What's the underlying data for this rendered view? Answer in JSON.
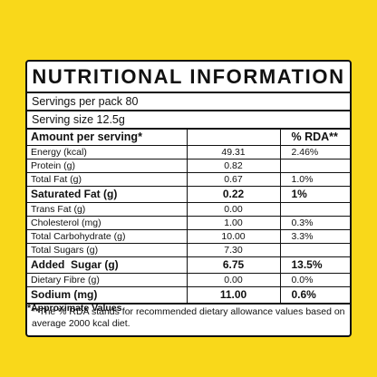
{
  "title": "NUTRITIONAL INFORMATION",
  "servings_per_pack": "Servings per pack 80",
  "serving_size": "Serving size 12.5g",
  "header": {
    "amount": "Amount per serving*",
    "rda": "% RDA**"
  },
  "rows": [
    {
      "name": "Energy (kcal)",
      "value": "49.31",
      "rda": "2.46%"
    },
    {
      "name": "Protein (g)",
      "value": "0.82",
      "rda": ""
    },
    {
      "name": "Total Fat (g)",
      "value": "0.67",
      "rda": "1.0%"
    },
    {
      "name": "Saturated Fat (g)",
      "value": "0.22",
      "rda": "1%"
    },
    {
      "name": "Trans Fat (g)",
      "value": "0.00",
      "rda": ""
    },
    {
      "name": "Cholesterol (mg)",
      "value": "1.00",
      "rda": "0.3%"
    },
    {
      "name": "Total Carbohydrate (g)",
      "value": "10.00",
      "rda": "3.3%"
    },
    {
      "name": "Total Sugars (g)",
      "value": "7.30",
      "rda": ""
    },
    {
      "name": "Added  Sugar (g)",
      "value": "6.75",
      "rda": "13.5%"
    },
    {
      "name": "Dietary Fibre (g)",
      "value": "0.00",
      "rda": "0.0%"
    },
    {
      "name": "Sodium (mg)",
      "value": "11.00",
      "rda": "0.6%"
    }
  ],
  "footnote": "**The % RDA stands for recommended dietary allowance values based on average 2000 kcal diet.",
  "approx_note": "*Approximate Values",
  "colors": {
    "background": "#f9d81a",
    "panel": "#ffffff",
    "border": "#111111"
  }
}
